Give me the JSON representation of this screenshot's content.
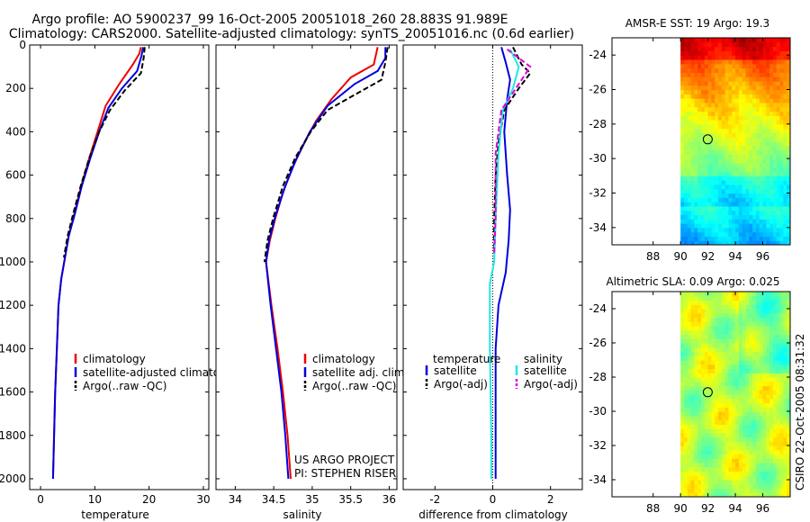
{
  "title": {
    "line1": "Argo profile: AO 5900237_99 16-Oct-2005 20051018_260 28.883S 91.989E",
    "line2": "Climatology: CARS2000. Satellite-adjusted climatology: synTS_20051016.nc (0.6d earlier)"
  },
  "colors": {
    "climatology": "#ee0000",
    "satellite": "#0000dd",
    "argo": "#000000",
    "sal_satellite": "#22e6e6",
    "sal_argo": "#dd00dd"
  },
  "chart_data": [
    {
      "type": "line",
      "id": "temperature",
      "xlabel": "temperature",
      "ylabel": "",
      "xlim": [
        -2,
        31
      ],
      "ylim": [
        0,
        2050
      ],
      "y_reversed": true,
      "x_ticks": [
        0,
        10,
        20,
        30
      ],
      "y_ticks": [
        0,
        200,
        400,
        600,
        800,
        1000,
        1200,
        1400,
        1600,
        1800,
        2000
      ],
      "series": [
        {
          "name": "climatology",
          "color_key": "climatology",
          "dash": "solid",
          "points": [
            [
              18.5,
              10
            ],
            [
              18.2,
              40
            ],
            [
              17.0,
              90
            ],
            [
              14.5,
              180
            ],
            [
              12.0,
              280
            ],
            [
              10.5,
              400
            ],
            [
              9.0,
              520
            ],
            [
              7.5,
              650
            ],
            [
              6.2,
              780
            ],
            [
              5.2,
              880
            ],
            [
              4.5,
              980
            ],
            [
              3.8,
              1080
            ],
            [
              3.3,
              1200
            ],
            [
              3.0,
              1400
            ],
            [
              2.7,
              1600
            ],
            [
              2.5,
              1800
            ],
            [
              2.3,
              2000
            ]
          ]
        },
        {
          "name": "satellite-adjusted climatology",
          "color_key": "satellite",
          "dash": "solid",
          "points": [
            [
              18.9,
              10
            ],
            [
              18.6,
              50
            ],
            [
              17.8,
              120
            ],
            [
              15.0,
              200
            ],
            [
              12.5,
              290
            ],
            [
              10.8,
              400
            ],
            [
              9.2,
              520
            ],
            [
              7.6,
              650
            ],
            [
              6.3,
              780
            ],
            [
              5.2,
              880
            ],
            [
              4.5,
              980
            ],
            [
              3.8,
              1080
            ],
            [
              3.3,
              1200
            ],
            [
              3.0,
              1400
            ],
            [
              2.7,
              1600
            ],
            [
              2.5,
              1800
            ],
            [
              2.3,
              2000
            ]
          ]
        },
        {
          "name": "Argo(..raw -QC)",
          "color_key": "argo",
          "dash": "dash",
          "points": [
            [
              19.2,
              10
            ],
            [
              19.0,
              60
            ],
            [
              18.5,
              130
            ],
            [
              15.5,
              210
            ],
            [
              12.8,
              300
            ],
            [
              10.8,
              400
            ],
            [
              9.0,
              520
            ],
            [
              7.4,
              650
            ],
            [
              6.0,
              780
            ],
            [
              5.0,
              880
            ],
            [
              4.3,
              980
            ]
          ]
        }
      ],
      "legend": {
        "position": "lower-right",
        "entries": [
          "climatology",
          "satellite-adjusted climatology",
          "Argo(..raw -QC)"
        ]
      }
    },
    {
      "type": "line",
      "id": "salinity",
      "xlabel": "salinity",
      "xlim": [
        33.75,
        36.1
      ],
      "ylim": [
        0,
        2050
      ],
      "y_reversed": true,
      "x_ticks": [
        34,
        34.5,
        35,
        35.5,
        36
      ],
      "series": [
        {
          "name": "climatology",
          "color_key": "climatology",
          "dash": "solid",
          "points": [
            [
              35.85,
              10
            ],
            [
              35.8,
              90
            ],
            [
              35.5,
              150
            ],
            [
              35.25,
              250
            ],
            [
              35.05,
              350
            ],
            [
              34.9,
              450
            ],
            [
              34.75,
              560
            ],
            [
              34.62,
              680
            ],
            [
              34.52,
              800
            ],
            [
              34.45,
              900
            ],
            [
              34.4,
              1000
            ],
            [
              34.47,
              1200
            ],
            [
              34.55,
              1400
            ],
            [
              34.62,
              1600
            ],
            [
              34.68,
              1800
            ],
            [
              34.72,
              2000
            ]
          ]
        },
        {
          "name": "satellite adj. clim.",
          "color_key": "satellite",
          "dash": "solid",
          "points": [
            [
              35.95,
              10
            ],
            [
              35.95,
              60
            ],
            [
              35.85,
              120
            ],
            [
              35.55,
              180
            ],
            [
              35.2,
              280
            ],
            [
              34.97,
              400
            ],
            [
              34.8,
              520
            ],
            [
              34.65,
              650
            ],
            [
              34.52,
              790
            ],
            [
              34.44,
              900
            ],
            [
              34.4,
              1000
            ],
            [
              34.46,
              1200
            ],
            [
              34.53,
              1400
            ],
            [
              34.6,
              1600
            ],
            [
              34.65,
              1800
            ],
            [
              34.69,
              2000
            ]
          ]
        },
        {
          "name": "Argo(..raw -QC)",
          "color_key": "argo",
          "dash": "dash",
          "points": [
            [
              35.98,
              10
            ],
            [
              35.95,
              80
            ],
            [
              35.9,
              160
            ],
            [
              35.6,
              220
            ],
            [
              35.2,
              300
            ],
            [
              34.98,
              400
            ],
            [
              34.78,
              520
            ],
            [
              34.62,
              650
            ],
            [
              34.5,
              790
            ],
            [
              34.42,
              900
            ],
            [
              34.38,
              1000
            ]
          ]
        }
      ],
      "legend": {
        "position": "lower-right",
        "entries": [
          "climatology",
          "satellite adj. clim.",
          "Argo(..raw -QC)"
        ]
      },
      "annotation": {
        "line1": "US ARGO PROJECT",
        "line2": "PI: STEPHEN RISER"
      }
    },
    {
      "type": "line",
      "id": "difference",
      "xlabel": "difference from climatology",
      "xlim": [
        -3.1,
        3.1
      ],
      "ylim": [
        0,
        2050
      ],
      "y_reversed": true,
      "x_ticks": [
        -2,
        0,
        2
      ],
      "zero_line": true,
      "series": [
        {
          "name": "temperature satellite",
          "color_key": "satellite",
          "dash": "solid",
          "points": [
            [
              0.3,
              10
            ],
            [
              0.45,
              80
            ],
            [
              0.6,
              160
            ],
            [
              0.5,
              250
            ],
            [
              0.4,
              400
            ],
            [
              0.5,
              600
            ],
            [
              0.6,
              760
            ],
            [
              0.55,
              900
            ],
            [
              0.45,
              1050
            ],
            [
              0.2,
              1200
            ],
            [
              0.1,
              1400
            ],
            [
              0.1,
              1800
            ],
            [
              0.1,
              2000
            ]
          ]
        },
        {
          "name": "temperature Argo(-adj)",
          "color_key": "argo",
          "dash": "dash",
          "points": [
            [
              0.7,
              10
            ],
            [
              1.0,
              90
            ],
            [
              1.3,
              130
            ],
            [
              0.9,
              200
            ],
            [
              0.4,
              300
            ],
            [
              0.2,
              450
            ],
            [
              0.1,
              600
            ],
            [
              0.05,
              800
            ],
            [
              0.05,
              960
            ]
          ]
        },
        {
          "name": "salinity satellite",
          "color_key": "sal_satellite",
          "dash": "solid",
          "points": [
            [
              0.6,
              20
            ],
            [
              0.9,
              100
            ],
            [
              0.7,
              200
            ],
            [
              0.35,
              300
            ],
            [
              0.2,
              500
            ],
            [
              0.1,
              800
            ],
            [
              0.05,
              1000
            ],
            [
              -0.1,
              1100
            ],
            [
              -0.1,
              1400
            ],
            [
              -0.05,
              1800
            ],
            [
              -0.05,
              2000
            ]
          ]
        },
        {
          "name": "salinity Argo(-adj)",
          "color_key": "sal_argo",
          "dash": "dash",
          "points": [
            [
              0.5,
              20
            ],
            [
              1.3,
              100
            ],
            [
              0.8,
              200
            ],
            [
              0.3,
              300
            ],
            [
              0.1,
              500
            ],
            [
              0.1,
              800
            ],
            [
              0.05,
              960
            ]
          ]
        }
      ],
      "legend": {
        "position": "lower",
        "headers": [
          "temperature",
          "salinity"
        ],
        "entries": [
          "satellite",
          "Argo(-adj)",
          "satellite",
          "Argo(-adj)"
        ]
      }
    },
    {
      "type": "heatmap",
      "id": "sst-map",
      "title": "AMSR-E SST: 19 Argo: 19.3",
      "xlim": [
        85,
        98
      ],
      "ylim": [
        -35,
        -23
      ],
      "x_ticks": [
        88,
        90,
        92,
        94,
        96
      ],
      "y_ticks": [
        -24,
        -26,
        -28,
        -30,
        -32,
        -34
      ],
      "data_extent_lon": [
        90,
        98
      ],
      "argo_marker": {
        "lon": 91.989,
        "lat": -28.883
      }
    },
    {
      "type": "heatmap",
      "id": "sla-map",
      "title": "Altimetric SLA: 0.09 Argo: 0.025",
      "xlim": [
        85,
        98
      ],
      "ylim": [
        -35,
        -23
      ],
      "x_ticks": [
        88,
        90,
        92,
        94,
        96
      ],
      "y_ticks": [
        -24,
        -26,
        -28,
        -30,
        -32,
        -34
      ],
      "data_extent_lon": [
        90,
        98
      ],
      "argo_marker": {
        "lon": 91.989,
        "lat": -28.883
      }
    }
  ],
  "side_stamp": "CSIRO 22-Oct-2005 08:31:32"
}
